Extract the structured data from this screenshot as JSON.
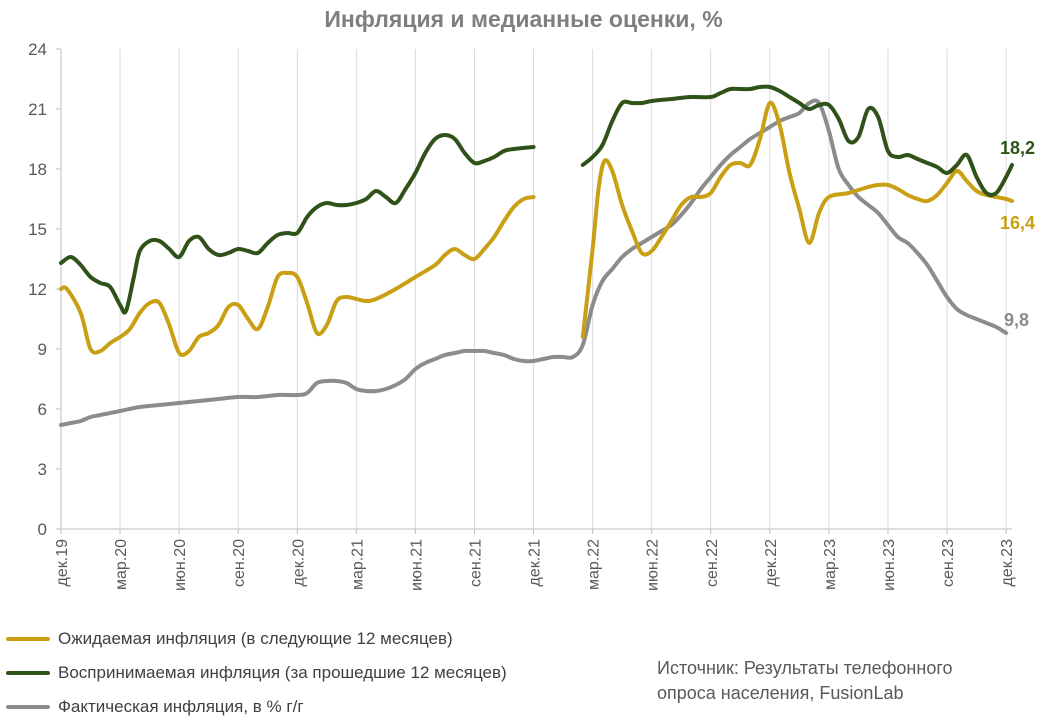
{
  "chart_data": {
    "type": "line",
    "title": "Инфляция и медианные оценки, %",
    "ylim": [
      0,
      24
    ],
    "yticks": [
      0,
      3,
      6,
      9,
      12,
      15,
      18,
      21,
      24
    ],
    "x_tick_labels": [
      "дек.19",
      "мар.20",
      "июн.20",
      "сен.20",
      "дек.20",
      "мар.21",
      "июн.21",
      "сен.21",
      "дек.21",
      "мар.22",
      "июн.22",
      "сен.22",
      "дек.22",
      "мар.23",
      "июн.23",
      "сен.23",
      "дек.23"
    ],
    "x_tick_months": [
      0,
      3,
      6,
      9,
      12,
      15,
      18,
      21,
      24,
      27,
      30,
      33,
      36,
      39,
      42,
      45,
      48
    ],
    "series": [
      {
        "name": "Ожидаемая инфляция (в следующие 12 месяцев)",
        "color": "#c9a013",
        "points": [
          [
            0,
            12.0
          ],
          [
            0.3,
            12.0
          ],
          [
            1,
            10.8
          ],
          [
            1.5,
            9.0
          ],
          [
            2,
            8.9
          ],
          [
            2.5,
            9.3
          ],
          [
            3,
            9.6
          ],
          [
            3.5,
            10.0
          ],
          [
            4,
            10.8
          ],
          [
            4.5,
            11.3
          ],
          [
            5,
            11.3
          ],
          [
            5.5,
            10.2
          ],
          [
            6,
            8.8
          ],
          [
            6.5,
            8.9
          ],
          [
            7,
            9.6
          ],
          [
            7.5,
            9.8
          ],
          [
            8,
            10.2
          ],
          [
            8.5,
            11.1
          ],
          [
            9,
            11.2
          ],
          [
            9.5,
            10.5
          ],
          [
            10,
            10.0
          ],
          [
            10.5,
            11.1
          ],
          [
            11,
            12.6
          ],
          [
            11.5,
            12.8
          ],
          [
            12,
            12.6
          ],
          [
            12.5,
            11.3
          ],
          [
            13,
            9.8
          ],
          [
            13.5,
            10.2
          ],
          [
            14,
            11.4
          ],
          [
            14.5,
            11.6
          ],
          [
            15,
            11.5
          ],
          [
            15.5,
            11.4
          ],
          [
            16,
            11.5
          ],
          [
            17,
            12.0
          ],
          [
            18,
            12.6
          ],
          [
            19,
            13.2
          ],
          [
            19.5,
            13.7
          ],
          [
            20,
            14.0
          ],
          [
            20.5,
            13.7
          ],
          [
            21,
            13.5
          ],
          [
            21.5,
            14.0
          ],
          [
            22,
            14.6
          ],
          [
            22.5,
            15.4
          ],
          [
            23,
            16.1
          ],
          [
            23.5,
            16.5
          ],
          [
            24,
            16.6
          ]
        ],
        "points_after_gap": [
          [
            26.5,
            9.6
          ],
          [
            27,
            14.0
          ],
          [
            27.3,
            17.0
          ],
          [
            27.6,
            18.4
          ],
          [
            28,
            17.9
          ],
          [
            28.5,
            16.2
          ],
          [
            29,
            14.9
          ],
          [
            29.5,
            13.8
          ],
          [
            30,
            13.9
          ],
          [
            30.5,
            14.6
          ],
          [
            31,
            15.4
          ],
          [
            31.5,
            16.2
          ],
          [
            32,
            16.6
          ],
          [
            32.5,
            16.6
          ],
          [
            33,
            16.8
          ],
          [
            33.5,
            17.6
          ],
          [
            34,
            18.2
          ],
          [
            34.5,
            18.3
          ],
          [
            35,
            18.2
          ],
          [
            35.5,
            19.5
          ],
          [
            36,
            21.3
          ],
          [
            36.5,
            20.2
          ],
          [
            37,
            17.8
          ],
          [
            37.5,
            16.0
          ],
          [
            38,
            14.3
          ],
          [
            38.5,
            15.8
          ],
          [
            39,
            16.6
          ],
          [
            40,
            16.8
          ],
          [
            41,
            17.1
          ],
          [
            41.5,
            17.2
          ],
          [
            42,
            17.2
          ],
          [
            42.5,
            17.0
          ],
          [
            43,
            16.7
          ],
          [
            43.5,
            16.5
          ],
          [
            44,
            16.4
          ],
          [
            44.5,
            16.7
          ],
          [
            45,
            17.3
          ],
          [
            45.5,
            17.9
          ],
          [
            46,
            17.4
          ],
          [
            46.5,
            16.9
          ],
          [
            47,
            16.7
          ],
          [
            47.5,
            16.6
          ],
          [
            48,
            16.5
          ],
          [
            48.3,
            16.4
          ]
        ],
        "end_label": "16,4"
      },
      {
        "name": "Воспринимаемая инфляция (за прошедшие 12 месяцев)",
        "color": "#2f5218",
        "points": [
          [
            0,
            13.3
          ],
          [
            0.5,
            13.6
          ],
          [
            1,
            13.2
          ],
          [
            1.5,
            12.6
          ],
          [
            2,
            12.3
          ],
          [
            2.5,
            12.1
          ],
          [
            3,
            11.2
          ],
          [
            3.3,
            10.9
          ],
          [
            3.7,
            12.6
          ],
          [
            4,
            13.9
          ],
          [
            4.5,
            14.4
          ],
          [
            5,
            14.4
          ],
          [
            5.5,
            14.0
          ],
          [
            6,
            13.6
          ],
          [
            6.5,
            14.4
          ],
          [
            7,
            14.6
          ],
          [
            7.5,
            14.0
          ],
          [
            8,
            13.7
          ],
          [
            8.5,
            13.8
          ],
          [
            9,
            14.0
          ],
          [
            9.5,
            13.9
          ],
          [
            10,
            13.8
          ],
          [
            10.5,
            14.3
          ],
          [
            11,
            14.7
          ],
          [
            11.5,
            14.8
          ],
          [
            12,
            14.8
          ],
          [
            12.5,
            15.6
          ],
          [
            13,
            16.1
          ],
          [
            13.5,
            16.3
          ],
          [
            14,
            16.2
          ],
          [
            14.5,
            16.2
          ],
          [
            15,
            16.3
          ],
          [
            15.5,
            16.5
          ],
          [
            16,
            16.9
          ],
          [
            16.5,
            16.6
          ],
          [
            17,
            16.3
          ],
          [
            17.5,
            17.0
          ],
          [
            18,
            17.8
          ],
          [
            18.5,
            18.8
          ],
          [
            19,
            19.5
          ],
          [
            19.5,
            19.7
          ],
          [
            20,
            19.5
          ],
          [
            20.5,
            18.8
          ],
          [
            21,
            18.3
          ],
          [
            21.5,
            18.4
          ],
          [
            22,
            18.6
          ],
          [
            22.5,
            18.9
          ],
          [
            23,
            19.0
          ],
          [
            24,
            19.1
          ]
        ],
        "points_after_gap": [
          [
            26.5,
            18.2
          ],
          [
            27,
            18.6
          ],
          [
            27.5,
            19.2
          ],
          [
            28,
            20.4
          ],
          [
            28.5,
            21.3
          ],
          [
            29,
            21.3
          ],
          [
            29.5,
            21.3
          ],
          [
            30,
            21.4
          ],
          [
            31,
            21.5
          ],
          [
            32,
            21.6
          ],
          [
            33,
            21.6
          ],
          [
            33.5,
            21.8
          ],
          [
            34,
            22.0
          ],
          [
            34.5,
            22.0
          ],
          [
            35,
            22.0
          ],
          [
            35.5,
            22.1
          ],
          [
            36,
            22.1
          ],
          [
            36.5,
            21.9
          ],
          [
            37,
            21.6
          ],
          [
            37.5,
            21.3
          ],
          [
            38,
            21.0
          ],
          [
            38.5,
            21.2
          ],
          [
            39,
            21.2
          ],
          [
            39.5,
            20.5
          ],
          [
            40,
            19.4
          ],
          [
            40.5,
            19.6
          ],
          [
            41,
            21.0
          ],
          [
            41.5,
            20.6
          ],
          [
            42,
            18.9
          ],
          [
            42.5,
            18.6
          ],
          [
            43,
            18.7
          ],
          [
            43.5,
            18.5
          ],
          [
            44,
            18.3
          ],
          [
            44.5,
            18.1
          ],
          [
            45,
            17.8
          ],
          [
            45.5,
            18.2
          ],
          [
            46,
            18.7
          ],
          [
            46.5,
            17.6
          ],
          [
            47,
            16.8
          ],
          [
            47.5,
            16.8
          ],
          [
            48,
            17.6
          ],
          [
            48.3,
            18.2
          ]
        ],
        "end_label": "18,2"
      },
      {
        "name": "Фактическая инфляция, в % г/г",
        "color": "#8c8c8c",
        "points": [
          [
            0,
            5.2
          ],
          [
            0.5,
            5.3
          ],
          [
            1,
            5.4
          ],
          [
            1.5,
            5.6
          ],
          [
            2,
            5.7
          ],
          [
            3,
            5.9
          ],
          [
            4,
            6.1
          ],
          [
            5,
            6.2
          ],
          [
            6,
            6.3
          ],
          [
            7,
            6.4
          ],
          [
            8,
            6.5
          ],
          [
            9,
            6.6
          ],
          [
            10,
            6.6
          ],
          [
            11,
            6.7
          ],
          [
            12,
            6.7
          ],
          [
            12.5,
            6.8
          ],
          [
            13,
            7.3
          ],
          [
            13.5,
            7.4
          ],
          [
            14,
            7.4
          ],
          [
            14.5,
            7.3
          ],
          [
            15,
            7.0
          ],
          [
            15.5,
            6.9
          ],
          [
            16,
            6.9
          ],
          [
            16.5,
            7.0
          ],
          [
            17,
            7.2
          ],
          [
            17.5,
            7.5
          ],
          [
            18,
            8.0
          ],
          [
            18.5,
            8.3
          ],
          [
            19,
            8.5
          ],
          [
            19.5,
            8.7
          ],
          [
            20,
            8.8
          ],
          [
            20.5,
            8.9
          ],
          [
            21,
            8.9
          ],
          [
            21.5,
            8.9
          ],
          [
            22,
            8.8
          ],
          [
            22.5,
            8.7
          ],
          [
            23,
            8.5
          ],
          [
            23.5,
            8.4
          ],
          [
            24,
            8.4
          ],
          [
            24.5,
            8.5
          ],
          [
            25,
            8.6
          ],
          [
            25.5,
            8.6
          ],
          [
            26,
            8.6
          ],
          [
            26.5,
            9.2
          ],
          [
            27,
            11.2
          ],
          [
            27.5,
            12.4
          ],
          [
            28,
            13.0
          ],
          [
            28.5,
            13.6
          ],
          [
            29,
            14.0
          ],
          [
            29.5,
            14.3
          ],
          [
            30,
            14.6
          ],
          [
            30.5,
            14.9
          ],
          [
            31,
            15.2
          ],
          [
            31.5,
            15.7
          ],
          [
            32,
            16.3
          ],
          [
            32.5,
            17.0
          ],
          [
            33,
            17.6
          ],
          [
            33.5,
            18.2
          ],
          [
            34,
            18.7
          ],
          [
            34.5,
            19.1
          ],
          [
            35,
            19.5
          ],
          [
            35.5,
            19.8
          ],
          [
            36,
            20.1
          ],
          [
            36.5,
            20.4
          ],
          [
            37,
            20.6
          ],
          [
            37.5,
            20.8
          ],
          [
            38,
            21.3
          ],
          [
            38.5,
            21.3
          ],
          [
            39,
            19.9
          ],
          [
            39.5,
            18.0
          ],
          [
            40,
            17.2
          ],
          [
            40.5,
            16.6
          ],
          [
            41,
            16.2
          ],
          [
            41.5,
            15.8
          ],
          [
            42,
            15.2
          ],
          [
            42.5,
            14.6
          ],
          [
            43,
            14.3
          ],
          [
            43.5,
            13.8
          ],
          [
            44,
            13.2
          ],
          [
            44.5,
            12.4
          ],
          [
            45,
            11.6
          ],
          [
            45.5,
            11.0
          ],
          [
            46,
            10.7
          ],
          [
            46.5,
            10.5
          ],
          [
            47,
            10.3
          ],
          [
            47.5,
            10.1
          ],
          [
            48,
            9.8
          ]
        ],
        "end_label": "9,8"
      }
    ]
  },
  "legend": [
    {
      "label": "Ожидаемая инфляция (в следующие 12 месяцев)",
      "color": "#c9a013"
    },
    {
      "label": "Воспринимаемая инфляция (за прошедшие 12 месяцев)",
      "color": "#2f5218"
    },
    {
      "label": "Фактическая инфляция, в % г/г",
      "color": "#8c8c8c"
    }
  ],
  "source": {
    "line1": "Источник: Результаты телефонного",
    "line2": "опроса населения, FusionLab"
  }
}
